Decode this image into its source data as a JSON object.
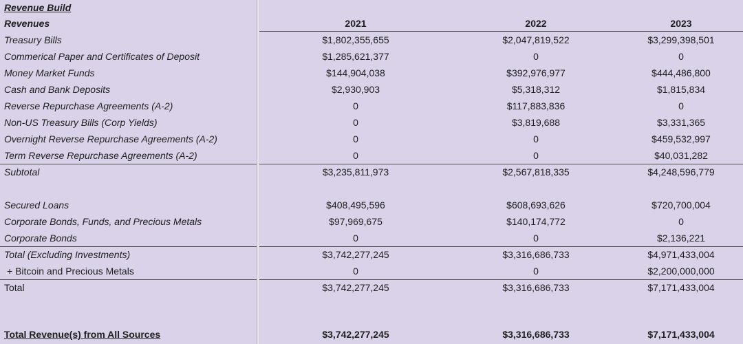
{
  "sheet": {
    "title": "Revenue Build",
    "header": {
      "label": "Revenues",
      "years": [
        "2021",
        "2022",
        "2023"
      ]
    },
    "rows": [
      {
        "label": "Treasury Bills",
        "values": [
          "$1,802,355,655",
          "$2,047,819,522",
          "$3,299,398,501"
        ]
      },
      {
        "label": "Commerical Paper and Certificates of Deposit",
        "values": [
          "$1,285,621,377",
          "0",
          "0"
        ]
      },
      {
        "label": "Money Market Funds",
        "values": [
          "$144,904,038",
          "$392,976,977",
          "$444,486,800"
        ]
      },
      {
        "label": "Cash and Bank Deposits",
        "values": [
          "$2,930,903",
          "$5,318,312",
          "$1,815,834"
        ]
      },
      {
        "label": "Reverse Repurchase Agreements (A-2)",
        "values": [
          "0",
          "$117,883,836",
          "0"
        ]
      },
      {
        "label": "Non-US Treasury Bills (Corp Yields)",
        "values": [
          "0",
          "$3,819,688",
          "$3,331,365"
        ]
      },
      {
        "label": "Overnight Reverse Repurchase Agreements (A-2)",
        "values": [
          "0",
          "0",
          "$459,532,997"
        ]
      },
      {
        "label": "Term Reverse Repurchase Agreements (A-2)",
        "values": [
          "0",
          "0",
          "$40,031,282"
        ]
      },
      {
        "label": "Subtotal",
        "values": [
          "$3,235,811,973",
          "$2,567,818,335",
          "$4,248,596,779"
        ]
      },
      {
        "label": "Secured Loans",
        "values": [
          "$408,495,596",
          "$608,693,626",
          "$720,700,004"
        ]
      },
      {
        "label": "Corporate Bonds, Funds, and Precious Metals",
        "values": [
          "$97,969,675",
          "$140,174,772",
          "0"
        ]
      },
      {
        "label": "Corporate Bonds",
        "values": [
          "0",
          "0",
          "$2,136,221"
        ]
      },
      {
        "label": "Total (Excluding Investments)",
        "values": [
          "$3,742,277,245",
          "$3,316,686,733",
          "$4,971,433,004"
        ]
      },
      {
        "label": "+ Bitcoin and Precious Metals",
        "values": [
          "0",
          "0",
          "$2,200,000,000"
        ]
      },
      {
        "label": "Total",
        "values": [
          "$3,742,277,245",
          "$3,316,686,733",
          "$7,171,433,004"
        ]
      },
      {
        "label": "Total Revenue(s) from All Sources",
        "values": [
          "$3,742,277,245",
          "$3,316,686,733",
          "$7,171,433,004"
        ]
      }
    ]
  },
  "colors": {
    "background": "#d9d2e9",
    "text": "#202020",
    "rule": "#4a4a4a",
    "divider": "#ebe7f0"
  }
}
